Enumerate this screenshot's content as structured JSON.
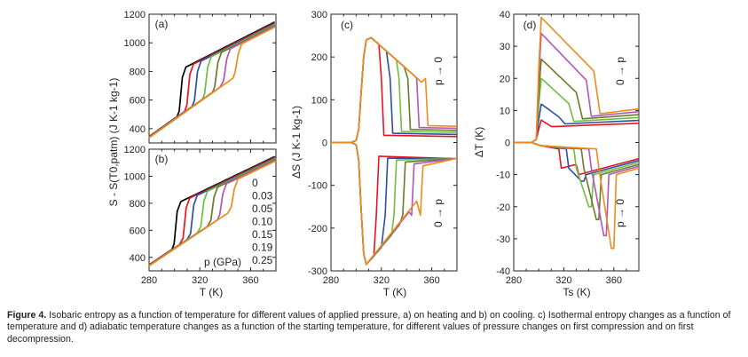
{
  "colors": {
    "0": "#000000",
    "0.03": "#e8141d",
    "0.05": "#2b4ea8",
    "0.10": "#6dbf3f",
    "0.15": "#6b7a2a",
    "0.19": "#b056b8",
    "0.25": "#f08a1c"
  },
  "legend": {
    "title": "p (GPa)",
    "entries": [
      {
        "label": "0",
        "color": "#000000"
      },
      {
        "label": "0.03",
        "color": "#e8141d"
      },
      {
        "label": "0.05",
        "color": "#2b4ea8"
      },
      {
        "label": "0.10",
        "color": "#6dbf3f"
      },
      {
        "label": "0.15",
        "color": "#6b7a2a"
      },
      {
        "label": "0.19",
        "color": "#b056b8"
      },
      {
        "label": "0.25",
        "color": "#f08a1c"
      }
    ]
  },
  "caption": {
    "label": "Figure 4.",
    "text": "Isobaric entropy as a function of temperature for different values of applied pressure, a) on heating and b) on cooling. c) Isothermal entropy changes as a function of temperature and d) adiabatic temperature changes as a function of the starting temperature, for different values of pressure changes on first compression and on first decompression."
  },
  "chart_data": [
    {
      "panel": "(a)",
      "type": "line",
      "title": "",
      "xlabel": "",
      "ylabel": "S - S(T0,patm) (J K-1 kg-1)",
      "xlim": [
        280,
        380
      ],
      "ylim": [
        300,
        1200
      ],
      "xticks": [],
      "yticks": [
        400,
        600,
        800,
        1000,
        1200
      ],
      "transition_onset": {
        "0": 302,
        "0.03": 308,
        "0.05": 314,
        "0.10": 322,
        "0.15": 330,
        "0.19": 337,
        "0.25": 346
      },
      "series": [
        {
          "name": "0",
          "x": [
            280,
            300,
            302,
            306,
            380
          ],
          "y": [
            345,
            520,
            540,
            810,
            1150
          ]
        },
        {
          "name": "0.25",
          "x": [
            280,
            340,
            346,
            352,
            380
          ],
          "y": [
            340,
            750,
            790,
            1000,
            1120
          ]
        }
      ]
    },
    {
      "panel": "(b)",
      "type": "line",
      "title": "",
      "xlabel": "T (K)",
      "ylabel": "S - S(T0,patm) (J K-1 kg-1)",
      "xlim": [
        280,
        380
      ],
      "ylim": [
        300,
        1200
      ],
      "xticks": [
        280,
        320,
        360
      ],
      "yticks": [
        400,
        600,
        800,
        1000,
        1200
      ],
      "transition_onset": {
        "0": 298,
        "0.03": 305,
        "0.05": 311,
        "0.10": 319,
        "0.15": 327,
        "0.19": 334,
        "0.25": 343
      },
      "series": [
        {
          "name": "0",
          "x": [
            280,
            296,
            304,
            380
          ],
          "y": [
            345,
            470,
            790,
            1150
          ]
        },
        {
          "name": "0.25",
          "x": [
            280,
            341,
            349,
            380
          ],
          "y": [
            340,
            740,
            1000,
            1120
          ]
        }
      ]
    },
    {
      "panel": "(c)",
      "type": "line",
      "title": "",
      "xlabel": "T (K)",
      "ylabel": "ΔS (J K-1 kg-1)",
      "xlim": [
        280,
        380
      ],
      "ylim": [
        -300,
        300
      ],
      "xticks": [
        280,
        320,
        360
      ],
      "yticks": [
        -300,
        -200,
        -100,
        0,
        100,
        200,
        300
      ],
      "annotations": [
        "p → 0",
        "0 → p"
      ],
      "compression_min": {
        "0.03": -285,
        "0.05": -285,
        "0.10": -285,
        "0.15": -285,
        "0.19": -285,
        "0.25": -285
      },
      "decompression_peak": {
        "0.03": 245,
        "0.05": 245,
        "0.10": 245,
        "0.15": 245,
        "0.19": 245,
        "0.25": 245
      }
    },
    {
      "panel": "(d)",
      "type": "line",
      "title": "",
      "xlabel": "Ts (K)",
      "ylabel": "ΔT (K)",
      "xlim": [
        280,
        380
      ],
      "ylim": [
        -40,
        40
      ],
      "xticks": [
        280,
        320,
        360
      ],
      "yticks": [
        -40,
        -30,
        -20,
        -10,
        0,
        10,
        20,
        30,
        40
      ],
      "annotations": [
        "0 → p",
        "p → 0"
      ],
      "peak_values": {
        "0.03": 7,
        "0.05": 12,
        "0.10": 20,
        "0.15": 26,
        "0.19": 34,
        "0.25": 39
      },
      "min_values": {
        "0.03": -7,
        "0.05": -12,
        "0.10": -20,
        "0.15": -24,
        "0.19": -29,
        "0.25": -33
      }
    }
  ]
}
